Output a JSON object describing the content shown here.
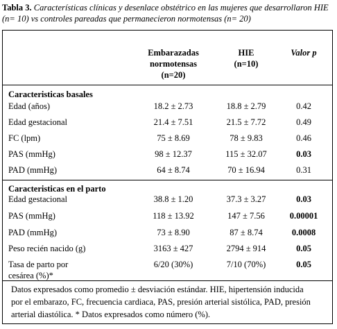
{
  "caption": {
    "lead": "Tabla 3.",
    "text": " Características clínicas y desenlace obstétrico  en las mujeres que desarrollaron HIE (n= 10) vs controles pareadas que permanecieron normotensas (n= 20)"
  },
  "header": {
    "col1_line1": "Embarazadas",
    "col1_line2": "normotensas",
    "col1_line3": "(n=20)",
    "col2_line1": "HIE",
    "col2_line2": "(n=10)",
    "col3": "Valor p"
  },
  "sections": [
    {
      "title": "Caracteristicas basales",
      "rows": [
        {
          "label": "Edad (años)",
          "normo": "18.2 ± 2.73",
          "hie": "18.8 ± 2.79",
          "p": "0.42",
          "p_bold": false
        },
        {
          "label": "Edad gestacional",
          "normo": "21.4 ± 7.51",
          "hie": "21.5 ± 7.72",
          "p": "0.49",
          "p_bold": false
        },
        {
          "label": "FC (lpm)",
          "normo": "75 ± 8.69",
          "hie": "78 ± 9.83",
          "p": "0.46",
          "p_bold": false
        },
        {
          "label": "PAS (mmHg)",
          "normo": "98 ± 12.37",
          "hie": "115 ± 32.07",
          "p": "0.03",
          "p_bold": true
        },
        {
          "label": "PAD (mmHg)",
          "normo": "64 ± 8.74",
          "hie": "70 ± 16.94",
          "p": "0.31",
          "p_bold": false
        }
      ]
    },
    {
      "title": "Caracteristicas en el parto",
      "rows": [
        {
          "label": "Edad gestacional",
          "normo": "38.8 ± 1.20",
          "hie": "37.3 ± 3.27",
          "p": "0.03",
          "p_bold": true
        },
        {
          "label": "PAS (mmHg)",
          "normo": "118 ± 13.92",
          "hie": "147 ± 7.56",
          "p": "0.00001",
          "p_bold": true
        },
        {
          "label": "PAD (mmHg)",
          "normo": "73 ± 8.90",
          "hie": "87 ± 8.74",
          "p": "0.0008",
          "p_bold": true
        },
        {
          "label": "Peso recién nacido (g)",
          "normo": "3163 ± 427",
          "hie": "2794 ± 914",
          "p": "0.05",
          "p_bold": true
        },
        {
          "label": "Tasa de parto por",
          "label2": "cesárea (%)*",
          "normo": "6/20 (30%)",
          "hie": "7/10 (70%)",
          "p": "0.05",
          "p_bold": true
        }
      ]
    }
  ],
  "note": {
    "line1": "Datos expresados como promedio ± desviación estándar. HIE, hipertensión inducida",
    "line2": "por el embarazo, FC, frecuencia cardiaca, PAS, presión arterial sistólica, PAD, presión",
    "line3": "arterial diastólica. * Datos expresados como número (%)."
  }
}
